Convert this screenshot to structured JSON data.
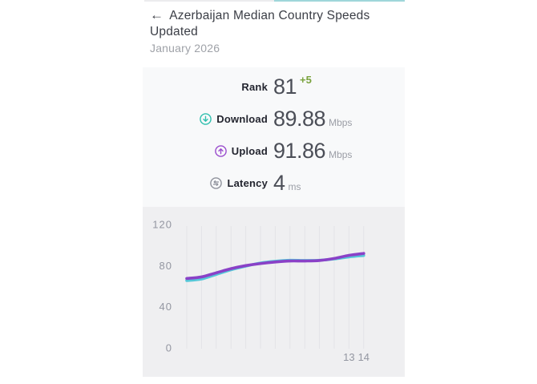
{
  "icons": {
    "back": "←"
  },
  "colors": {
    "tab_inactive": "#ececee",
    "tab_active": "#9fd6da",
    "delta_green": "#79a23c",
    "download_icon": "#2fbfae",
    "upload_icon": "#9a4ccd",
    "latency_icon": "#8f929c"
  },
  "header": {
    "title": "Azerbaijan Median Country Speeds Updated",
    "subtitle": "January 2026"
  },
  "stats": {
    "rank": {
      "label": "Rank",
      "value": "81",
      "delta": "+5"
    },
    "download": {
      "label": "Download",
      "value": "89.88",
      "unit": "Mbps"
    },
    "upload": {
      "label": "Upload",
      "value": "91.86",
      "unit": "Mbps"
    },
    "latency": {
      "label": "Latency",
      "value": "4",
      "unit": "ms"
    }
  },
  "chart_data": {
    "type": "line",
    "title": "",
    "xlabel": "",
    "ylabel": "",
    "x": [
      2,
      3,
      4,
      5,
      6,
      7,
      8,
      9,
      10,
      11,
      12,
      13,
      14
    ],
    "series": [
      {
        "name": "Download",
        "color": "#55c7d8",
        "values": [
          65.5,
          67.0,
          71.5,
          76.0,
          79.5,
          82.5,
          84.2,
          85.2,
          85.0,
          85.2,
          86.5,
          88.5,
          89.88
        ]
      },
      {
        "name": "Upload",
        "color": "#8a41c7",
        "values": [
          67.5,
          69.0,
          73.0,
          77.0,
          80.0,
          82.0,
          83.5,
          84.5,
          84.5,
          85.0,
          87.0,
          90.0,
          91.86
        ]
      }
    ],
    "ylim": [
      0,
      120
    ],
    "yticks": [
      0,
      40,
      80,
      120
    ],
    "xtick_labels": [
      "13",
      "14"
    ],
    "grid": "vertical",
    "legend": "none"
  }
}
